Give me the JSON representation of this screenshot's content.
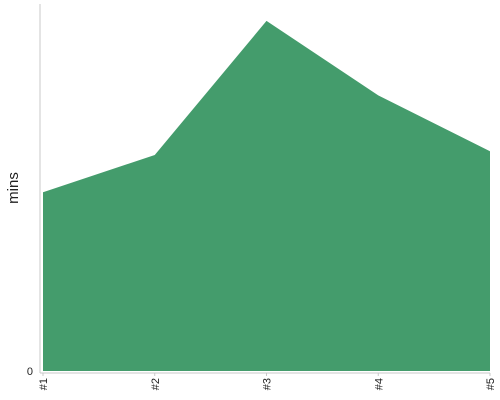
{
  "chart_data": {
    "type": "area",
    "title": "",
    "xlabel": "",
    "ylabel": "mins",
    "categories": [
      "#1",
      "#2",
      "#3",
      "#4",
      "#5"
    ],
    "series": [
      {
        "values": [
          24,
          29,
          47,
          37,
          29.5
        ]
      }
    ],
    "ylim": [
      0,
      49
    ],
    "y_ticks": [
      "0"
    ],
    "grid": false,
    "legend": "none",
    "color": "#449c6c"
  }
}
